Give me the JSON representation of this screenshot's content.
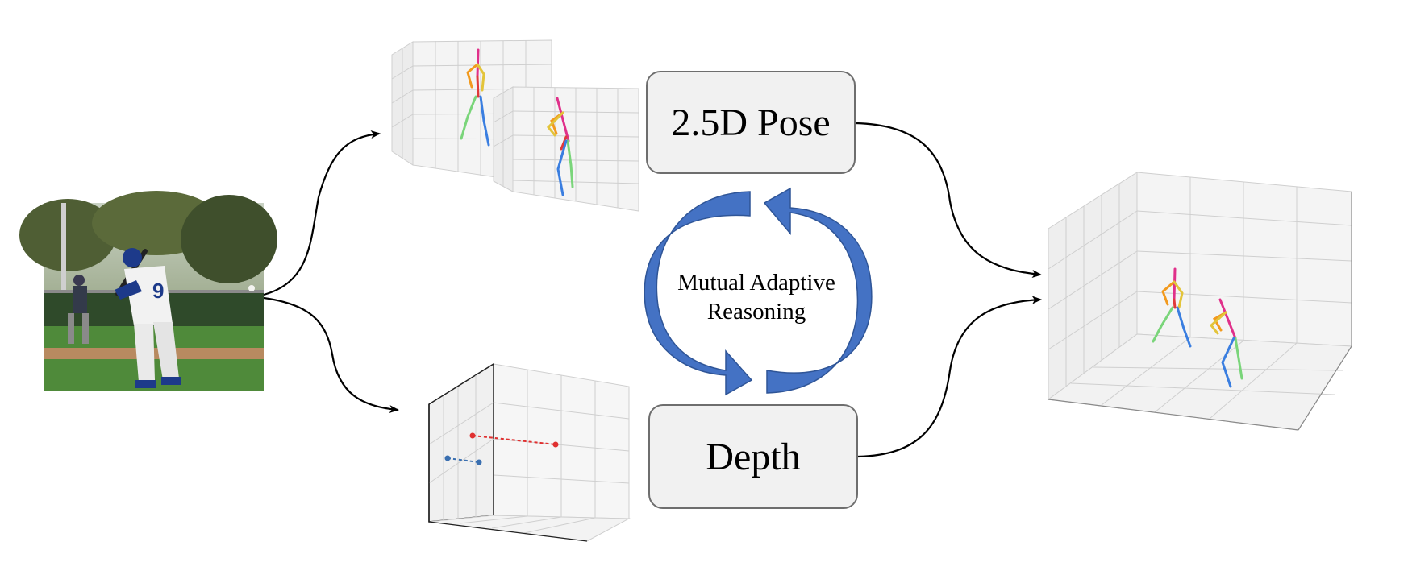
{
  "boxes": {
    "pose_label": "2.5D Pose",
    "depth_label": "Depth"
  },
  "cycle": {
    "line1": "Mutual Adaptive",
    "line2": "Reasoning"
  },
  "colors": {
    "cycle_arrow": "#4472C4",
    "cycle_arrow_edge": "#2F5597",
    "box_fill": "#F1F1F1",
    "box_border": "#6E6E6E",
    "grid": "#C8C8C8",
    "depth_red": "#E03030",
    "depth_blue": "#3A6FB0"
  },
  "icons": {
    "input_photo": "baseball-batter-photo",
    "pose_plots": "skeleton-3d-plot",
    "depth_plot": "depth-plot",
    "output_plot": "skeleton-3d-plot"
  }
}
